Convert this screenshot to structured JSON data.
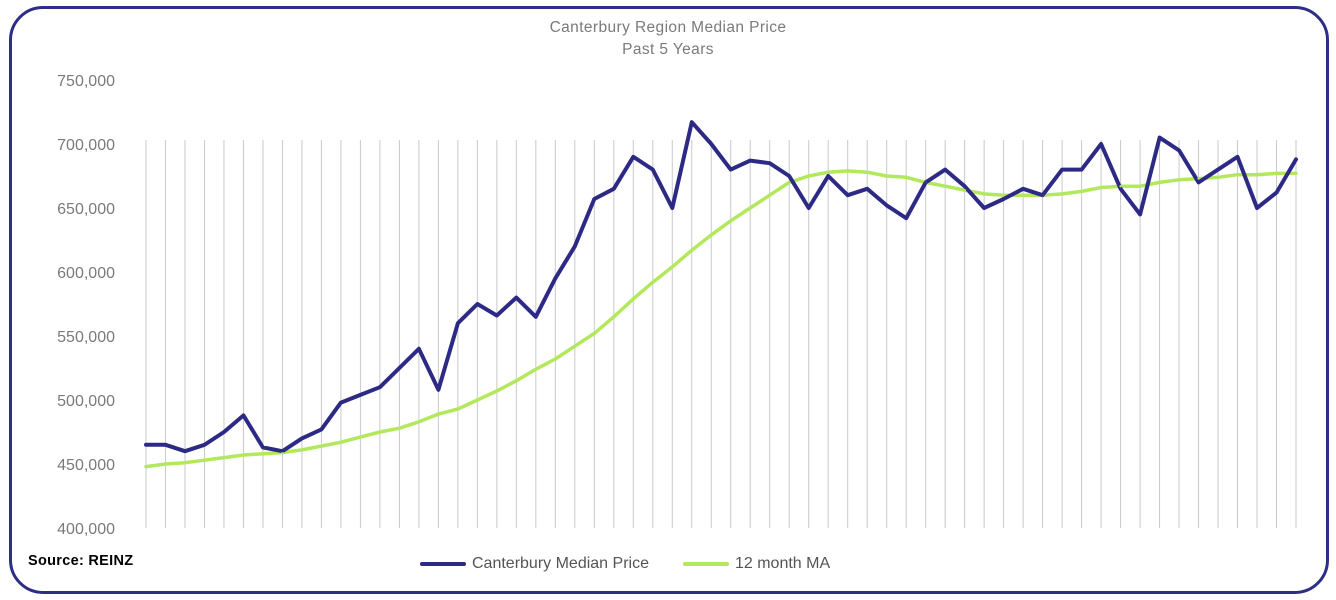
{
  "chart_data": {
    "type": "line",
    "title": "Canterbury Region Median Price",
    "subtitle": "Past 5 Years",
    "xlabel": "",
    "ylabel": "",
    "ylim": [
      400000,
      750000
    ],
    "yticks": [
      400000,
      450000,
      500000,
      550000,
      600000,
      650000,
      700000,
      750000
    ],
    "ytick_labels": [
      "400,000",
      "450,000",
      "500,000",
      "550,000",
      "600,000",
      "650,000",
      "700,000",
      "750,000"
    ],
    "grid": "vertical lines at each month",
    "legend_position": "bottom",
    "series": [
      {
        "name": "Canterbury Median Price",
        "color": "#2d2a85",
        "values": [
          465000,
          465000,
          460000,
          465000,
          475000,
          488000,
          463000,
          460000,
          470000,
          477000,
          498000,
          504000,
          510000,
          525000,
          540000,
          508000,
          560000,
          575000,
          566000,
          580000,
          565000,
          595000,
          620000,
          657000,
          665000,
          690000,
          680000,
          650000,
          717000,
          700000,
          680000,
          687000,
          685000,
          675000,
          650000,
          675000,
          660000,
          665000,
          652000,
          642000,
          670000,
          680000,
          667000,
          650000,
          657000,
          665000,
          660000,
          680000,
          680000,
          700000,
          665000,
          645000,
          705000,
          695000,
          670000,
          680000,
          690000,
          650000,
          662000,
          688000
        ]
      },
      {
        "name": "12 month MA",
        "color": "#b3e85c",
        "values": [
          448000,
          450000,
          451000,
          453000,
          455000,
          457000,
          458000,
          459000,
          461000,
          464000,
          467000,
          471000,
          475000,
          478000,
          483000,
          489000,
          493000,
          500000,
          507000,
          515000,
          524000,
          532000,
          542000,
          552000,
          565000,
          579000,
          592000,
          604000,
          617000,
          629000,
          640000,
          650000,
          660000,
          670000,
          675000,
          678000,
          679000,
          678000,
          675000,
          674000,
          670000,
          667000,
          664000,
          661000,
          660000,
          660000,
          660000,
          661000,
          663000,
          666000,
          667000,
          667000,
          670000,
          672000,
          673000,
          674000,
          676000,
          676000,
          677000,
          677000
        ]
      }
    ]
  },
  "source_text": "Source: REINZ"
}
